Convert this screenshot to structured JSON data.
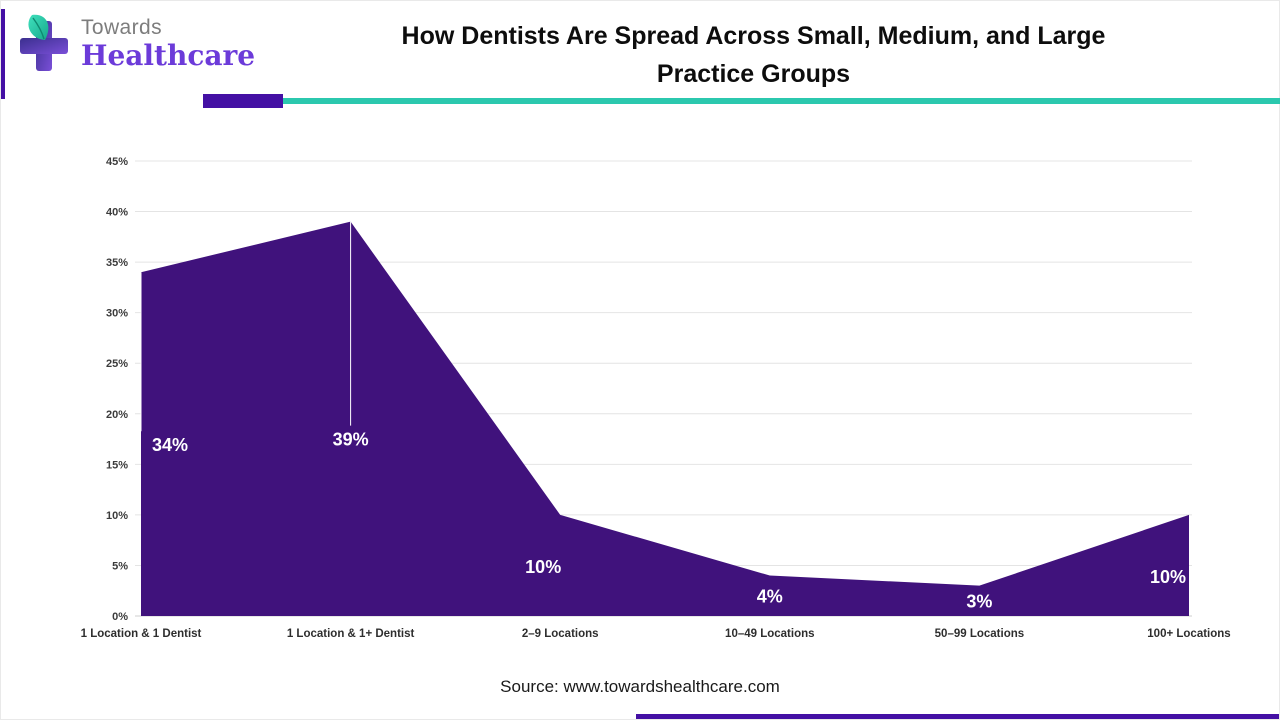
{
  "header": {
    "logo": {
      "word1": "Towards",
      "word2": "Healthcare"
    },
    "title_lines": [
      "How Dentists Are Spread Across Small, Medium, and Large",
      "Practice Groups"
    ]
  },
  "chart_data": {
    "type": "area",
    "title": "How Dentists Are Spread Across Small, Medium, and Large Practice Groups",
    "categories": [
      "1 Location & 1 Dentist",
      "1 Location & 1+ Dentist",
      "2–9 Locations",
      "10–49 Locations",
      "50–99 Locations",
      "100+ Locations"
    ],
    "values": [
      34,
      39,
      10,
      4,
      3,
      10
    ],
    "data_labels": [
      "34%",
      "39%",
      "10%",
      "4%",
      "3%",
      "10%"
    ],
    "xlabel": "",
    "ylabel": "",
    "ylim": [
      0,
      45
    ],
    "ytick_step": 5,
    "ytick_labels": [
      "0%",
      "5%",
      "10%",
      "15%",
      "20%",
      "25%",
      "30%",
      "35%",
      "40%",
      "45%"
    ],
    "grid": true,
    "legend": "none",
    "fill_color": "#40127C",
    "label_color": "#ffffff"
  },
  "footer": {
    "source_text": "Source: www.towardshealthcare.com"
  },
  "colors": {
    "accent_purple": "#4410A4",
    "accent_teal": "#2BC8AE",
    "logo_purple": "#6C3BD9",
    "logo_gray": "#7d7d7d",
    "gridline": "#e4e4e4"
  }
}
